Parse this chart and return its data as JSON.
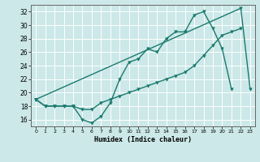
{
  "xlabel": "Humidex (Indice chaleur)",
  "bg_color": "#cce8e8",
  "grid_color": "#ffffff",
  "line_color": "#1a7a6e",
  "xlim": [
    -0.5,
    23.5
  ],
  "ylim": [
    15.0,
    33.0
  ],
  "xticks": [
    0,
    1,
    2,
    3,
    4,
    5,
    6,
    7,
    8,
    9,
    10,
    11,
    12,
    13,
    14,
    15,
    16,
    17,
    18,
    19,
    20,
    21,
    22,
    23
  ],
  "yticks": [
    16,
    18,
    20,
    22,
    24,
    26,
    28,
    30,
    32
  ],
  "series1_x": [
    0,
    1,
    2,
    3,
    4,
    5,
    6,
    7,
    8,
    9,
    10,
    11,
    12,
    13,
    14,
    15,
    16,
    17,
    18,
    19,
    20,
    21
  ],
  "series1_y": [
    19,
    18,
    18,
    18,
    18,
    16,
    15.5,
    16.5,
    18.5,
    22,
    24.5,
    25,
    26.5,
    26,
    28,
    29,
    29,
    31.5,
    32,
    29.5,
    26.5,
    20.5
  ],
  "series2_x": [
    0,
    1,
    2,
    3,
    4,
    5,
    6,
    7,
    8,
    9,
    10,
    11,
    12,
    13,
    14,
    15,
    16,
    17,
    18,
    19,
    20,
    21,
    22
  ],
  "series2_y": [
    19,
    18,
    18,
    18,
    18,
    17.5,
    17.5,
    18.5,
    19,
    19.5,
    20,
    20.5,
    21,
    21.5,
    22,
    22.5,
    23,
    24,
    25.5,
    27,
    28.5,
    29,
    29.5
  ],
  "series3_x": [
    0,
    22,
    23
  ],
  "series3_y": [
    19,
    32.5,
    20.5
  ],
  "marker_size": 2.5,
  "linewidth": 1.0
}
